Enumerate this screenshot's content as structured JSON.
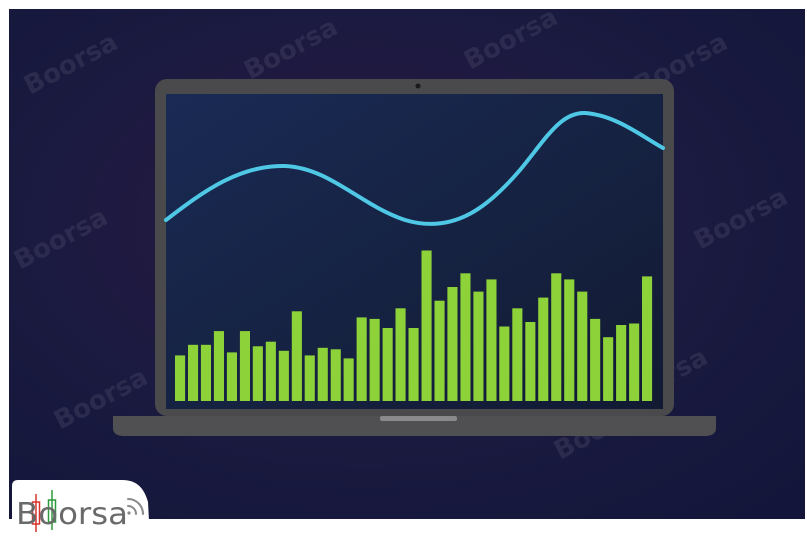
{
  "illustration": {
    "subject": "laptop showing a wave line and green bar chart",
    "colors": {
      "background": "#15163a",
      "background_glow": "#2a1640",
      "laptop_body": "#4a4a4c",
      "laptop_base": "#505052",
      "screen": "#162347",
      "wave_line": "#4fc8e6",
      "bars": "#8ed23a",
      "watermark": "#5a5a78"
    },
    "bar_levels": [
      0.3,
      0.37,
      0.37,
      0.46,
      0.32,
      0.46,
      0.36,
      0.39,
      0.33,
      0.59,
      0.3,
      0.35,
      0.34,
      0.28,
      0.55,
      0.54,
      0.48,
      0.61,
      0.48,
      0.99,
      0.66,
      0.75,
      0.84,
      0.72,
      0.8,
      0.49,
      0.61,
      0.52,
      0.68,
      0.84,
      0.8,
      0.72,
      0.54,
      0.42,
      0.5,
      0.51,
      0.82
    ]
  },
  "watermark": {
    "text": "Boorsa"
  },
  "logo": {
    "text": "Boorsa",
    "colors": {
      "text": "#6a6a6a",
      "candle_red": "#d9322b",
      "candle_green": "#2e9a3a",
      "signal": "#8a8a8a",
      "card": "#ffffff"
    }
  }
}
